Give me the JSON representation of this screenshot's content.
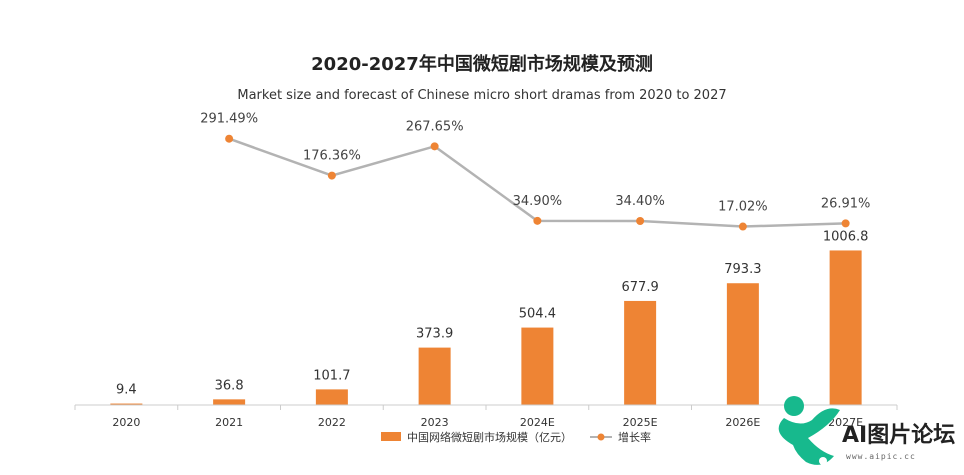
{
  "chart_data": {
    "type": "bar",
    "title": "2020-2027年中国微短剧市场规模及预测",
    "subtitle": "Market size and forecast of Chinese micro short dramas from 2020 to 2027",
    "categories": [
      "2020",
      "2021",
      "2022",
      "2023",
      "2024E",
      "2025E",
      "2026E",
      "2027E"
    ],
    "series": [
      {
        "name": "中国网络微短剧市场规模（亿元）",
        "type": "bar",
        "values": [
          9.4,
          36.8,
          101.7,
          373.9,
          504.4,
          677.9,
          793.3,
          1006.8
        ],
        "labels": [
          "9.4",
          "36.8",
          "101.7",
          "373.9",
          "504.4",
          "677.9",
          "793.3",
          "1006.8"
        ]
      },
      {
        "name": "增长率",
        "type": "line",
        "values": [
          null,
          291.49,
          176.36,
          267.65,
          34.9,
          34.4,
          17.02,
          26.91
        ],
        "labels": [
          "",
          "291.49%",
          "176.36%",
          "267.65%",
          "34.90%",
          "34.40%",
          "17.02%",
          "26.91%"
        ]
      }
    ],
    "legend_position": "bottom-center",
    "grid": false
  },
  "colors": {
    "bar": "#ee8434",
    "line": "#b3b3b3",
    "marker": "#ee8434",
    "axis": "#cccccc"
  },
  "watermark": {
    "text": "AI图片论坛",
    "url": "www.aipic.cc"
  }
}
